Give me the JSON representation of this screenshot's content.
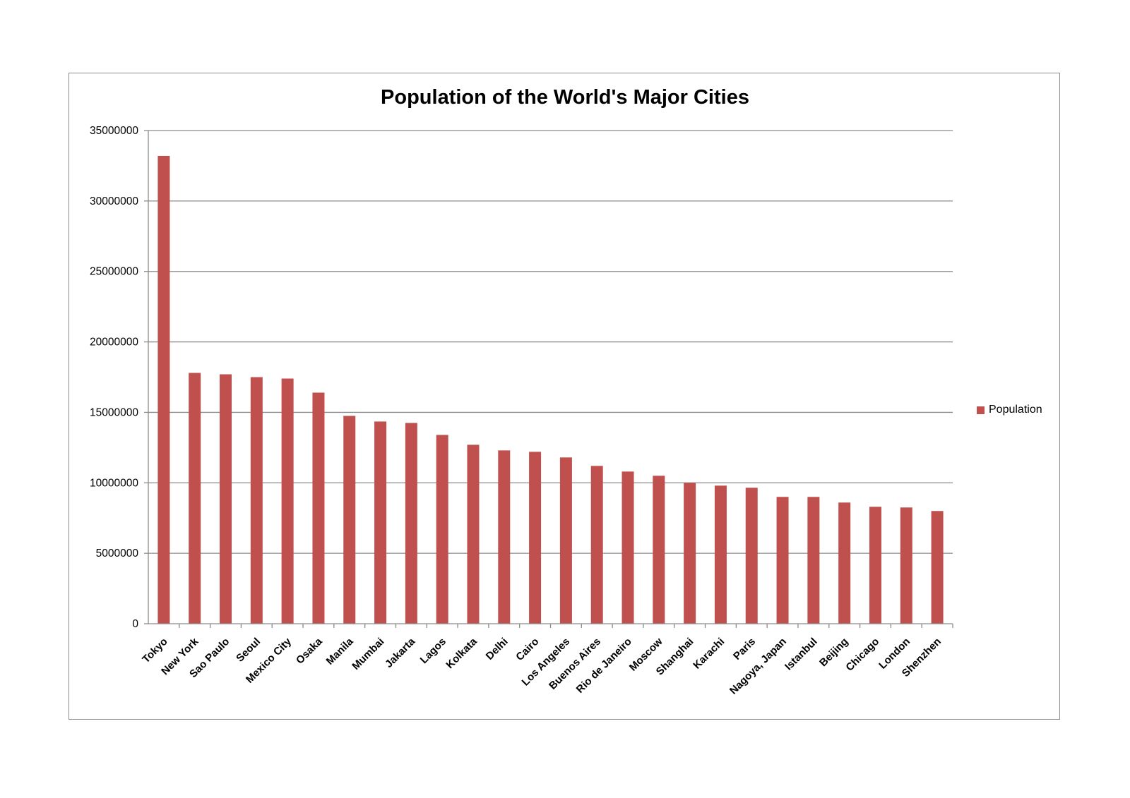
{
  "chart_data": {
    "type": "bar",
    "title": "Population of the World's Major Cities",
    "xlabel": "",
    "ylabel": "",
    "ylim": [
      0,
      35000000
    ],
    "yticks": [
      0,
      5000000,
      10000000,
      15000000,
      20000000,
      25000000,
      30000000,
      35000000
    ],
    "grid": true,
    "legend_position": "right",
    "categories": [
      "Tokyo",
      "New York",
      "Sao Paulo",
      "Seoul",
      "Mexico City",
      "Osaka",
      "Manila",
      "Mumbai",
      "Jakarta",
      "Lagos",
      "Kolkata",
      "Delhi",
      "Cairo",
      "Los Angeles",
      "Buenos Aires",
      "Rio de Janeiro",
      "Moscow",
      "Shanghai",
      "Karachi",
      "Paris",
      "Nagoya, Japan",
      "Istanbul",
      "Beijing",
      "Chicago",
      "London",
      "Shenzhen"
    ],
    "series": [
      {
        "name": "Population",
        "color": "#c0504d",
        "values": [
          33200000,
          17800000,
          17700000,
          17500000,
          17400000,
          16400000,
          14750000,
          14350000,
          14250000,
          13400000,
          12700000,
          12300000,
          12200000,
          11800000,
          11200000,
          10800000,
          10500000,
          10000000,
          9800000,
          9650000,
          9000000,
          9000000,
          8600000,
          8300000,
          8250000,
          8000000
        ]
      }
    ]
  }
}
